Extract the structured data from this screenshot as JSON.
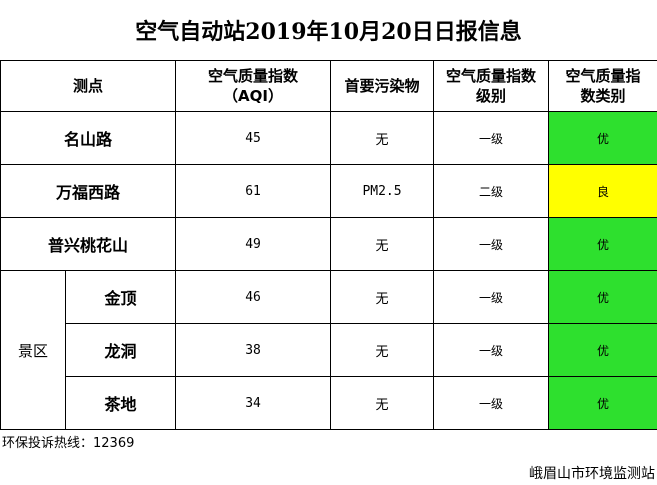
{
  "title": "空气自动站2019年10月20日日报信息",
  "headers": {
    "site": "测点",
    "aqi_line1": "空气质量指数",
    "aqi_line2": "（AQI）",
    "pollutant": "首要污染物",
    "level_line1": "空气质量指数",
    "level_line2": "级别",
    "cat_line1": "空气质量指",
    "cat_line2": "数类别"
  },
  "rows": [
    {
      "name": "名山路",
      "aqi": "45",
      "pollutant": "无",
      "level": "一级",
      "category": "优"
    },
    {
      "name": "万福西路",
      "aqi": "61",
      "pollutant": "PM2.5",
      "level": "二级",
      "category": "良"
    },
    {
      "name": "普兴桃花山",
      "aqi": "49",
      "pollutant": "无",
      "level": "一级",
      "category": "优"
    }
  ],
  "scenic": {
    "area_label": "景区",
    "rows": [
      {
        "name": "金顶",
        "aqi": "46",
        "pollutant": "无",
        "level": "一级",
        "category": "优"
      },
      {
        "name": "龙洞",
        "aqi": "38",
        "pollutant": "无",
        "level": "一级",
        "category": "优"
      },
      {
        "name": "茶地",
        "aqi": "34",
        "pollutant": "无",
        "level": "一级",
        "category": "优"
      }
    ]
  },
  "footer": {
    "hotline": "环保投诉热线：12369",
    "station": "峨眉山市环境监测站"
  },
  "colors": {
    "good": "#2ee02e",
    "fair": "#ffff00"
  }
}
